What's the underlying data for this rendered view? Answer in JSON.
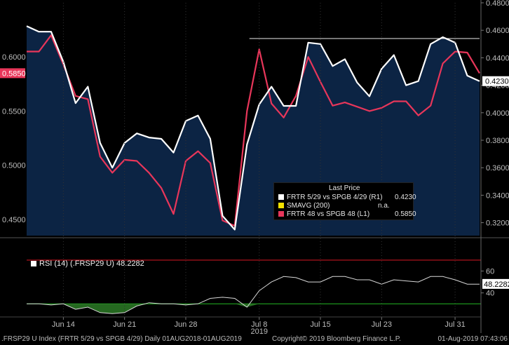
{
  "chart_data": {
    "type": "line",
    "x_ticks": [
      "Jun 14",
      "Jun 21",
      "Jun 28",
      "Jul 8",
      "Jul 15",
      "Jul 23",
      "Jul 31"
    ],
    "year_label": "2019",
    "left_axis": {
      "ticks": [
        "0.6000",
        "0.5500",
        "0.5000",
        "0.4500"
      ],
      "ylim": [
        0.435,
        0.65
      ]
    },
    "right_axis": {
      "ticks": [
        "0.4800",
        "0.4600",
        "0.4400",
        "0.4200",
        "0.4000",
        "0.3800",
        "0.3600",
        "0.3400",
        "0.3200"
      ],
      "ylim": [
        0.3106,
        0.48
      ]
    },
    "series": [
      {
        "name": "FRTR 5/29 vs SPGB 4/29  (R1)",
        "axis": "right",
        "color": "#ffffff",
        "values": [
          0.463,
          0.459,
          0.459,
          0.437,
          0.407,
          0.419,
          0.378,
          0.36,
          0.378,
          0.385,
          0.382,
          0.381,
          0.371,
          0.394,
          0.398,
          0.381,
          0.325,
          0.315,
          0.377,
          0.406,
          0.419,
          0.405,
          0.405,
          0.451,
          0.45,
          0.434,
          0.439,
          0.422,
          0.412,
          0.432,
          0.442,
          0.42,
          0.423,
          0.45,
          0.455,
          0.451,
          0.427,
          0.423
        ]
      },
      {
        "name": "FRTR 48 vs SPGB 48  (L1)",
        "axis": "left",
        "color": "#e8365a",
        "values": [
          0.605,
          0.605,
          0.62,
          0.593,
          0.564,
          0.561,
          0.508,
          0.493,
          0.505,
          0.504,
          0.493,
          0.479,
          0.455,
          0.504,
          0.513,
          0.502,
          0.449,
          0.444,
          0.55,
          0.607,
          0.557,
          0.544,
          0.564,
          0.6,
          0.577,
          0.555,
          0.558,
          0.554,
          0.55,
          0.553,
          0.559,
          0.559,
          0.546,
          0.555,
          0.594,
          0.605,
          0.604,
          0.585
        ]
      }
    ],
    "reference_line": {
      "axis": "right",
      "value": 0.454,
      "x_start_index": 19
    },
    "last_price_labels": {
      "left": "0.5850",
      "right": "0.4230"
    },
    "legend": {
      "title": "Last Price",
      "entries": [
        {
          "name": "FRTR 5/29 vs SPGB 4/29  (R1)",
          "value": "0.4230",
          "color": "#ffffff"
        },
        {
          "name": "SMAVG (200)",
          "value": "n.a.",
          "color": "#f4e200"
        },
        {
          "name": "FRTR 48 vs SPGB 48  (L1)",
          "value": "0.5850",
          "color": "#e8365a"
        }
      ]
    },
    "rsi": {
      "label": "RSI (14)  (.FRSP29 U)  48.2282",
      "last": "48.2282",
      "ticks": [
        "60",
        "40"
      ],
      "ylim": [
        18,
        86
      ],
      "upper_line": 70,
      "lower_line": 30,
      "values": [
        30,
        30,
        29,
        30,
        25,
        27,
        22,
        21,
        22,
        28,
        31,
        30,
        30,
        29,
        30,
        35,
        36,
        35,
        27,
        42,
        50,
        55,
        54,
        50,
        50,
        55,
        55,
        52,
        52,
        48,
        52,
        51,
        50,
        55,
        55,
        52,
        48,
        48
      ]
    }
  },
  "footer": {
    "left": ".FRSP29 U Index (FRTR 5/29 vs SPGB 4/29)  Daily 01AUG2018-01AUG2019",
    "center": "Copyright© 2019 Bloomberg Finance L.P.",
    "right": "01-Aug-2019 07:43:06"
  }
}
